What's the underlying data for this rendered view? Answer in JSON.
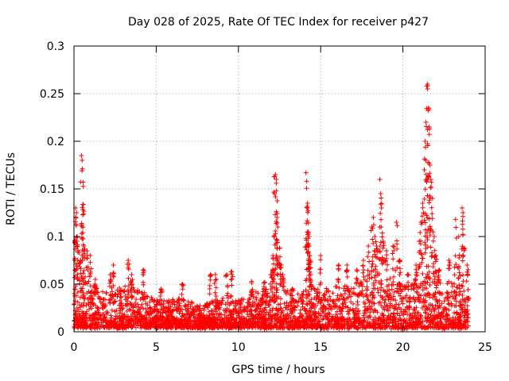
{
  "chart_data": {
    "type": "scatter",
    "title": "Day 028 of 2025, Rate Of TEC Index for receiver p427",
    "xlabel": "GPS time / hours",
    "ylabel": "ROTI / TECUs",
    "xlim": [
      0,
      25
    ],
    "ylim": [
      0,
      0.3
    ],
    "x_ticks": [
      0,
      5,
      10,
      15,
      20,
      25
    ],
    "y_ticks": [
      0,
      0.05,
      0.1,
      0.15,
      0.2,
      0.25,
      0.3
    ],
    "x_tick_labels": [
      "0",
      "5",
      "10",
      "15",
      "20",
      "25"
    ],
    "y_tick_labels": [
      "0",
      "0.05",
      "0.1",
      "0.15",
      "0.2",
      "0.25",
      "0.3"
    ],
    "grid": true,
    "marker": "+",
    "color": "#ff0000",
    "time_range_hours": [
      0,
      24
    ],
    "series": [
      {
        "values": [
          [
            0.05,
            0.095
          ],
          [
            0.1,
            0.13
          ],
          [
            0.15,
            0.125
          ],
          [
            0.2,
            0.1
          ],
          [
            0.25,
            0.085
          ],
          [
            0.4,
            0.075
          ],
          [
            0.45,
            0.185
          ],
          [
            0.5,
            0.18
          ],
          [
            0.55,
            0.157
          ],
          [
            0.55,
            0.128
          ],
          [
            0.6,
            0.09
          ],
          [
            0.8,
            0.085
          ],
          [
            1.0,
            0.08
          ],
          [
            1.3,
            0.055
          ],
          [
            2.2,
            0.06
          ],
          [
            2.4,
            0.07
          ],
          [
            3.3,
            0.075
          ],
          [
            3.5,
            0.06
          ],
          [
            4.2,
            0.065
          ],
          [
            5.3,
            0.045
          ],
          [
            6.6,
            0.05
          ],
          [
            8.3,
            0.06
          ],
          [
            8.6,
            0.06
          ],
          [
            9.3,
            0.06
          ],
          [
            9.6,
            0.063
          ],
          [
            10.8,
            0.053
          ],
          [
            11.6,
            0.052
          ],
          [
            12.0,
            0.06
          ],
          [
            12.1,
            0.08
          ],
          [
            12.15,
            0.1
          ],
          [
            12.2,
            0.163
          ],
          [
            12.25,
            0.165
          ],
          [
            12.3,
            0.16
          ],
          [
            12.3,
            0.148
          ],
          [
            12.35,
            0.12
          ],
          [
            12.4,
            0.11
          ],
          [
            12.5,
            0.088
          ],
          [
            12.6,
            0.07
          ],
          [
            12.7,
            0.06
          ],
          [
            13.3,
            0.045
          ],
          [
            14.1,
            0.167
          ],
          [
            14.15,
            0.158
          ],
          [
            14.2,
            0.135
          ],
          [
            14.2,
            0.13
          ],
          [
            14.25,
            0.105
          ],
          [
            14.3,
            0.1
          ],
          [
            14.3,
            0.09
          ],
          [
            14.35,
            0.075
          ],
          [
            14.4,
            0.06
          ],
          [
            15.0,
            0.08
          ],
          [
            16.1,
            0.07
          ],
          [
            16.6,
            0.07
          ],
          [
            17.2,
            0.065
          ],
          [
            17.6,
            0.075
          ],
          [
            17.9,
            0.09
          ],
          [
            18.1,
            0.11
          ],
          [
            18.2,
            0.12
          ],
          [
            18.3,
            0.1
          ],
          [
            18.4,
            0.09
          ],
          [
            18.6,
            0.16
          ],
          [
            18.65,
            0.145
          ],
          [
            18.7,
            0.13
          ],
          [
            18.8,
            0.095
          ],
          [
            19.0,
            0.085
          ],
          [
            19.4,
            0.09
          ],
          [
            19.6,
            0.115
          ],
          [
            19.8,
            0.075
          ],
          [
            20.3,
            0.06
          ],
          [
            20.8,
            0.07
          ],
          [
            21.0,
            0.095
          ],
          [
            21.1,
            0.115
          ],
          [
            21.2,
            0.135
          ],
          [
            21.3,
            0.17
          ],
          [
            21.35,
            0.2
          ],
          [
            21.4,
            0.22
          ],
          [
            21.45,
            0.258
          ],
          [
            21.5,
            0.26
          ],
          [
            21.5,
            0.255
          ],
          [
            21.55,
            0.235
          ],
          [
            21.6,
            0.215
          ],
          [
            21.65,
            0.175
          ],
          [
            21.7,
            0.16
          ],
          [
            21.8,
            0.14
          ],
          [
            21.9,
            0.1
          ],
          [
            22.0,
            0.08
          ],
          [
            22.2,
            0.065
          ],
          [
            22.8,
            0.075
          ],
          [
            23.2,
            0.118
          ],
          [
            23.4,
            0.1
          ],
          [
            23.6,
            0.13
          ],
          [
            23.65,
            0.125
          ],
          [
            23.7,
            0.088
          ],
          [
            23.9,
            0.07
          ],
          [
            24.0,
            0.035
          ]
        ],
        "baseline_envelope": [
          [
            0,
            0.055
          ],
          [
            0.5,
            0.06
          ],
          [
            1,
            0.05
          ],
          [
            1.5,
            0.04
          ],
          [
            2,
            0.04
          ],
          [
            2.5,
            0.045
          ],
          [
            3,
            0.045
          ],
          [
            3.5,
            0.045
          ],
          [
            4,
            0.04
          ],
          [
            4.5,
            0.035
          ],
          [
            5,
            0.03
          ],
          [
            5.5,
            0.03
          ],
          [
            6,
            0.03
          ],
          [
            6.5,
            0.032
          ],
          [
            7,
            0.028
          ],
          [
            7.5,
            0.025
          ],
          [
            8,
            0.025
          ],
          [
            8.5,
            0.03
          ],
          [
            9,
            0.032
          ],
          [
            9.5,
            0.035
          ],
          [
            10,
            0.03
          ],
          [
            10.5,
            0.032
          ],
          [
            11,
            0.038
          ],
          [
            11.5,
            0.04
          ],
          [
            12,
            0.045
          ],
          [
            12.5,
            0.05
          ],
          [
            13,
            0.04
          ],
          [
            13.5,
            0.035
          ],
          [
            14,
            0.04
          ],
          [
            14.5,
            0.045
          ],
          [
            15,
            0.045
          ],
          [
            15.5,
            0.042
          ],
          [
            16,
            0.045
          ],
          [
            16.5,
            0.045
          ],
          [
            17,
            0.045
          ],
          [
            17.5,
            0.05
          ],
          [
            18,
            0.055
          ],
          [
            18.5,
            0.06
          ],
          [
            19,
            0.055
          ],
          [
            19.5,
            0.05
          ],
          [
            20,
            0.045
          ],
          [
            20.5,
            0.045
          ],
          [
            21,
            0.055
          ],
          [
            21.5,
            0.07
          ],
          [
            22,
            0.055
          ],
          [
            22.5,
            0.045
          ],
          [
            23,
            0.05
          ],
          [
            23.5,
            0.055
          ],
          [
            24,
            0.04
          ]
        ]
      }
    ]
  }
}
